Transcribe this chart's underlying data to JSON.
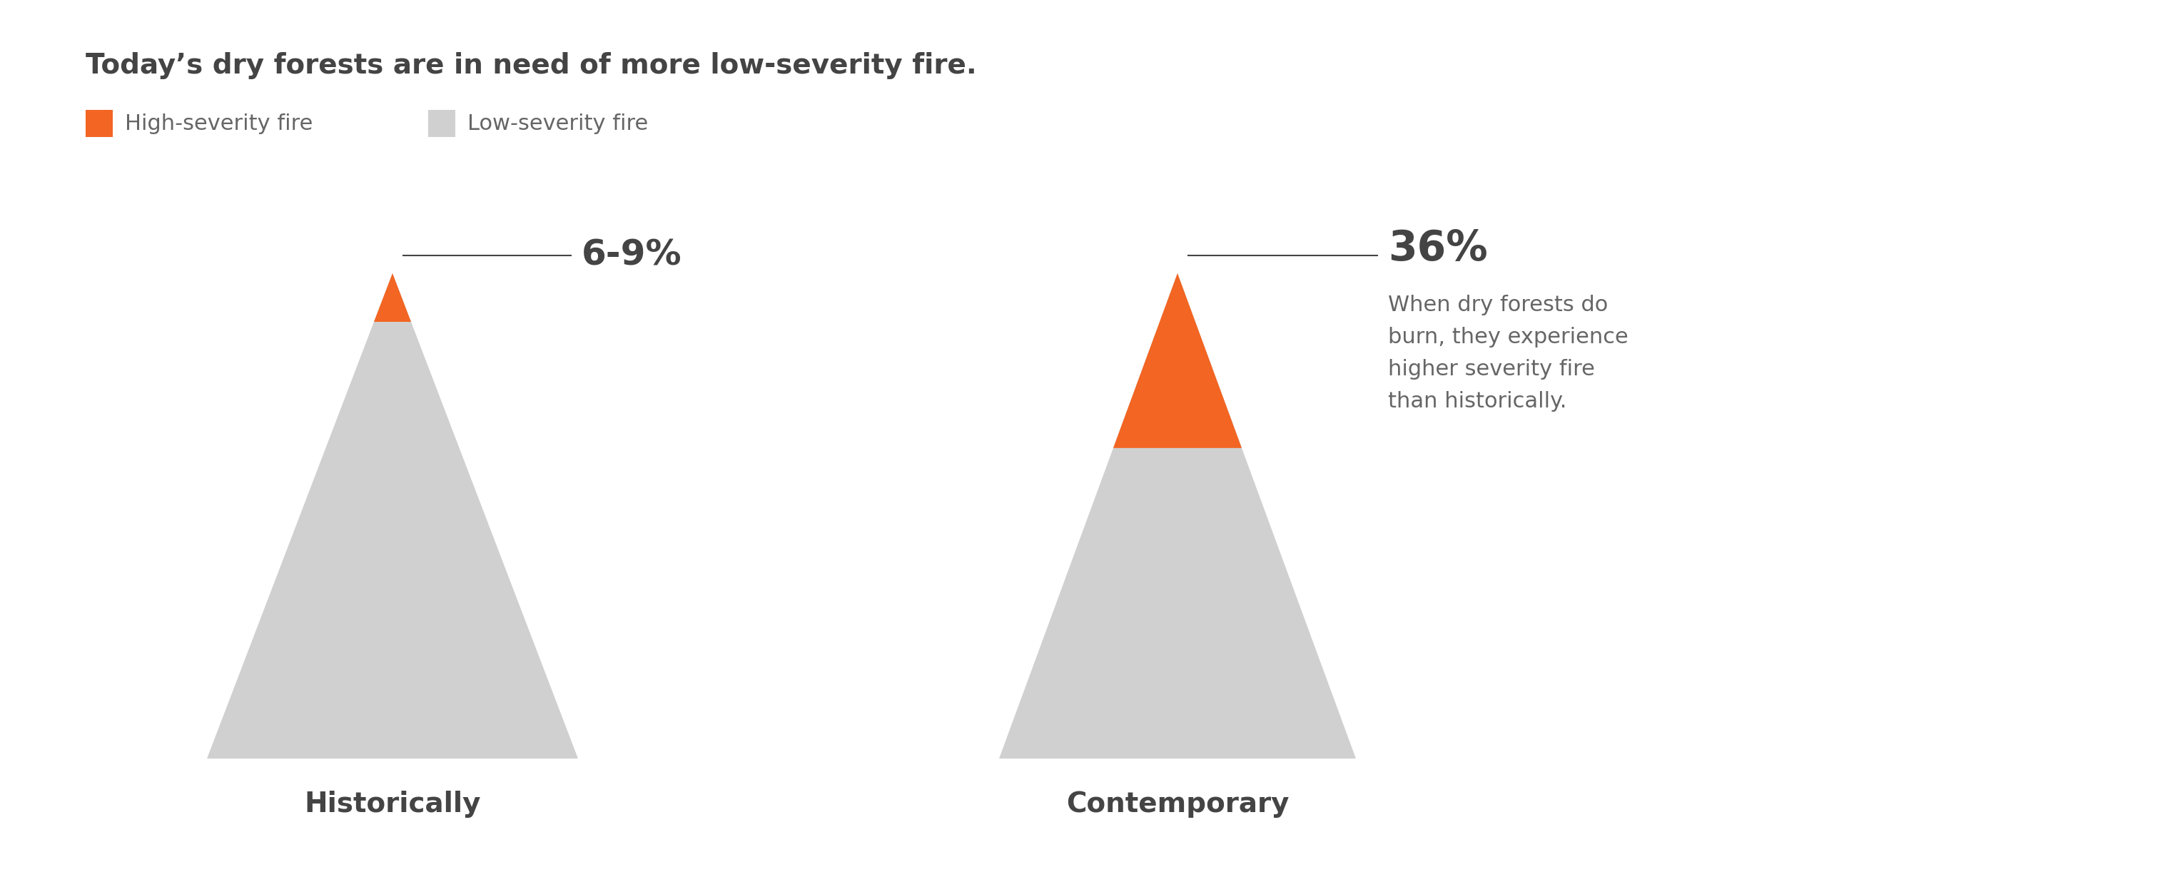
{
  "title": "Today’s dry forests are in need of more low-severity fire.",
  "background_color": "#ffffff",
  "text_color": "#666666",
  "dark_text_color": "#444444",
  "orange_color": "#f26522",
  "gray_color": "#d0d0d0",
  "legend_high_label": "High-severity fire",
  "legend_low_label": "Low-severity fire",
  "hist_label": "Historically",
  "contemp_label": "Contemporary",
  "hist_pct": "6-9%",
  "contemp_pct": "36%",
  "annotation_text": "When dry forests do\nburn, they experience\nhigher severity fire\nthan historically.",
  "title_fontsize": 28,
  "label_fontsize": 28,
  "pct_fontsize": 36,
  "annot_pct_fontsize": 42,
  "legend_fontsize": 22,
  "annot_fontsize": 22
}
